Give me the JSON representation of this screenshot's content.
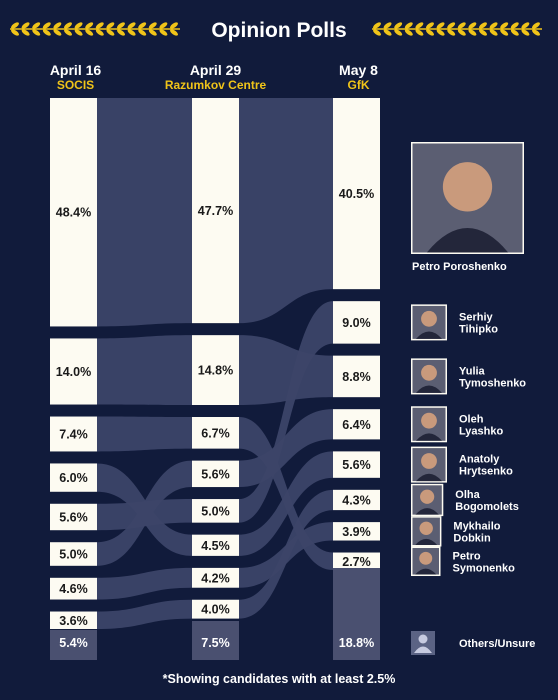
{
  "header": {
    "title": "Opinion Polls"
  },
  "footnote": "*Showing candidates with at least 2.5%",
  "others_label": "Others/Unsure",
  "colors": {
    "background": "#111b3b",
    "bar": "#fdfbf2",
    "bar_muted": "#4a5070",
    "flow": "#3c4468",
    "accent": "#f0c419",
    "text": "#ffffff",
    "value_text": "#1a1a1a"
  },
  "chart_data": {
    "type": "bar",
    "title": "Opinion Polls",
    "polls": [
      {
        "date": "April 16",
        "source": "SOCIS"
      },
      {
        "date": "April 29",
        "source": "Razumkov Centre"
      },
      {
        "date": "May 8",
        "source": "GfK"
      }
    ],
    "series": [
      {
        "name": "Petro Poroshenko",
        "values": [
          48.4,
          47.7,
          40.5
        ],
        "labels": [
          "48.4%",
          "47.7%",
          "40.5%"
        ],
        "icon": "portrait-icon"
      },
      {
        "name": "Serhiy Tihipko",
        "values": [
          5.6,
          5.0,
          9.0
        ],
        "labels": [
          "5.6%",
          "5.0%",
          "9.0%"
        ],
        "icon": "portrait-icon"
      },
      {
        "name": "Yulia Tymoshenko",
        "values": [
          14.0,
          14.8,
          8.8
        ],
        "labels": [
          "14.0%",
          "14.8%",
          "8.8%"
        ],
        "icon": "portrait-icon"
      },
      {
        "name": "Oleh Lyashko",
        "values": [
          5.0,
          5.6,
          6.4
        ],
        "labels": [
          "5.0%",
          "5.6%",
          "6.4%"
        ],
        "icon": "portrait-icon"
      },
      {
        "name": "Anatoly Hrytsenko",
        "values": [
          6.0,
          4.5,
          5.6
        ],
        "labels": [
          "6.0%",
          "4.5%",
          "5.6%"
        ],
        "icon": "portrait-icon"
      },
      {
        "name": "Olha Bogomolets",
        "values": [
          3.6,
          4.0,
          4.3
        ],
        "labels": [
          "3.6%",
          "4.0%",
          "4.3%"
        ],
        "icon": "portrait-icon"
      },
      {
        "name": "Mykhailo Dobkin",
        "values": [
          4.6,
          4.2,
          3.9
        ],
        "labels": [
          "4.6%",
          "4.2%",
          "3.9%"
        ],
        "icon": "portrait-icon"
      },
      {
        "name": "Petro Symonenko",
        "values": [
          7.4,
          6.7,
          2.7
        ],
        "labels": [
          "7.4%",
          "6.7%",
          "2.7%"
        ],
        "icon": "portrait-icon"
      }
    ],
    "others": {
      "name": "Others/Unsure",
      "values": [
        5.4,
        7.5,
        18.8
      ],
      "labels": [
        "5.4%",
        "7.5%",
        "18.8%"
      ],
      "icon": "person-silhouette-icon"
    },
    "unit": "%"
  }
}
